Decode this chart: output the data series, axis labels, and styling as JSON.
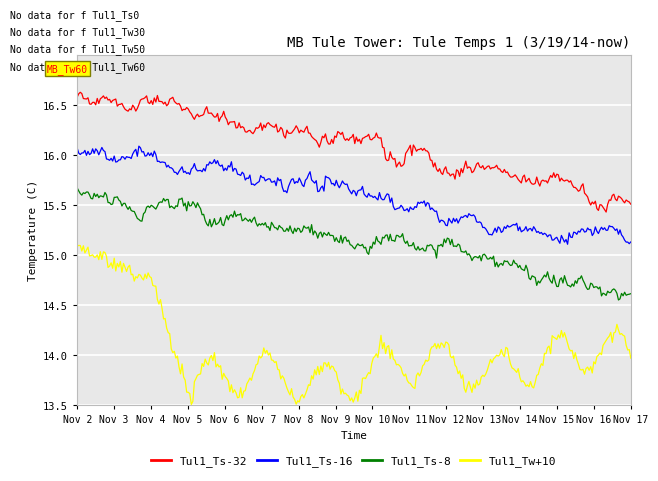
{
  "title": "MB Tule Tower: Tule Temps 1 (3/19/14-now)",
  "xlabel": "Time",
  "ylabel": "Temperature (C)",
  "ylim": [
    13.5,
    17.0
  ],
  "xlim": [
    0,
    15
  ],
  "xtick_labels": [
    "Nov 2",
    "Nov 3",
    "Nov 4",
    "Nov 5",
    "Nov 6",
    "Nov 7",
    "Nov 8",
    "Nov 9",
    "Nov 10",
    "Nov 11",
    "Nov 12",
    "Nov 13",
    "Nov 14",
    "Nov 15",
    "Nov 16",
    "Nov 17"
  ],
  "xtick_positions": [
    0,
    1,
    2,
    3,
    4,
    5,
    6,
    7,
    8,
    9,
    10,
    11,
    12,
    13,
    14,
    15
  ],
  "ytick_positions": [
    13.5,
    14.0,
    14.5,
    15.0,
    15.5,
    16.0,
    16.5
  ],
  "series": {
    "Tul1_Ts-32": {
      "color": "red",
      "label": "Tul1_Ts-32"
    },
    "Tul1_Ts-16": {
      "color": "blue",
      "label": "Tul1_Ts-16"
    },
    "Tul1_Ts-8": {
      "color": "green",
      "label": "Tul1_Ts-8"
    },
    "Tul1_Tw+10": {
      "color": "yellow",
      "label": "Tul1_Tw+10"
    }
  },
  "no_data_annotations": [
    "No data for f Tul1_Ts0",
    "No data for f Tul1_Tw30",
    "No data for f Tul1_Tw50",
    "No data for f Tul1_Tw60"
  ],
  "axes_bg_color": "#e8e8e8",
  "grid_color": "white",
  "title_fontsize": 10,
  "annotation_fontsize": 7,
  "legend_fontsize": 8
}
